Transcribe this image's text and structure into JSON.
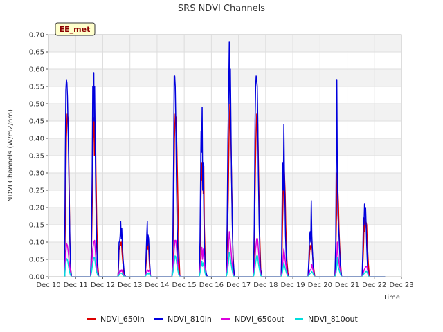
{
  "chart_data": {
    "type": "line",
    "title": "SRS NDVI Channels",
    "site_label": "EE_met",
    "xlabel": "Time",
    "ylabel": "NDVI Channels (W/m2/nm)",
    "xlim": [
      10.0,
      23.0
    ],
    "ylim": [
      0.0,
      0.7
    ],
    "x_ticks": [
      {
        "v": 10,
        "label": "Dec 10"
      },
      {
        "v": 11,
        "label": "Dec 11"
      },
      {
        "v": 12,
        "label": "Dec 12"
      },
      {
        "v": 13,
        "label": "Dec 13"
      },
      {
        "v": 14,
        "label": "Dec 14"
      },
      {
        "v": 15,
        "label": "Dec 15"
      },
      {
        "v": 16,
        "label": "Dec 16"
      },
      {
        "v": 17,
        "label": "Dec 17"
      },
      {
        "v": 18,
        "label": "Dec 18"
      },
      {
        "v": 19,
        "label": "Dec 19"
      },
      {
        "v": 20,
        "label": "Dec 20"
      },
      {
        "v": 21,
        "label": "Dec 21"
      },
      {
        "v": 22,
        "label": "Dec 22"
      },
      {
        "v": 23,
        "label": "Dec 23"
      }
    ],
    "y_ticks": [
      {
        "v": 0.0,
        "label": "0.00"
      },
      {
        "v": 0.05,
        "label": "0.05"
      },
      {
        "v": 0.1,
        "label": "0.10"
      },
      {
        "v": 0.15,
        "label": "0.15"
      },
      {
        "v": 0.2,
        "label": "0.20"
      },
      {
        "v": 0.25,
        "label": "0.25"
      },
      {
        "v": 0.3,
        "label": "0.30"
      },
      {
        "v": 0.35,
        "label": "0.35"
      },
      {
        "v": 0.4,
        "label": "0.40"
      },
      {
        "v": 0.45,
        "label": "0.45"
      },
      {
        "v": 0.5,
        "label": "0.50"
      },
      {
        "v": 0.55,
        "label": "0.55"
      },
      {
        "v": 0.6,
        "label": "0.60"
      },
      {
        "v": 0.65,
        "label": "0.65"
      },
      {
        "v": 0.7,
        "label": "0.70"
      }
    ],
    "grid": true,
    "legend_position": "bottom",
    "series": [
      {
        "name": "NDVI_650in",
        "color": "#dd0000",
        "x": [
          10.57,
          10.6,
          10.63,
          10.66,
          10.69,
          10.72,
          10.74,
          10.76,
          10.79,
          10.82,
          10.85,
          11.55,
          11.58,
          11.61,
          11.64,
          11.67,
          11.69,
          11.7,
          11.71,
          11.72,
          11.74,
          11.75,
          11.78,
          11.82,
          11.85,
          12.56,
          12.58,
          12.6,
          12.62,
          12.65,
          12.67,
          12.69,
          12.71,
          12.74,
          12.78,
          12.83,
          13.56,
          13.59,
          13.62,
          13.65,
          13.66,
          13.68,
          13.72,
          13.76,
          14.55,
          14.58,
          14.61,
          14.64,
          14.67,
          14.7,
          14.73,
          14.76,
          14.8,
          14.84,
          15.55,
          15.58,
          15.61,
          15.64,
          15.66,
          15.68,
          15.7,
          15.72,
          15.74,
          15.77,
          15.8,
          15.84,
          16.55,
          16.58,
          16.62,
          16.65,
          16.68,
          16.7,
          16.72,
          16.75,
          16.79,
          16.84,
          17.55,
          17.58,
          17.62,
          17.64,
          17.67,
          17.69,
          17.71,
          17.74,
          17.78,
          17.82,
          17.86,
          18.57,
          18.6,
          18.62,
          18.65,
          18.68,
          18.7,
          18.72,
          18.74,
          18.78,
          18.82,
          18.86,
          19.56,
          19.59,
          19.62,
          19.64,
          19.66,
          19.69,
          19.72,
          19.76,
          19.81,
          20.55,
          20.58,
          20.61,
          20.63,
          20.66,
          20.68,
          20.7,
          20.72,
          20.75,
          20.79,
          21.55,
          21.58,
          21.61,
          21.63,
          21.65,
          21.67,
          21.69,
          21.72,
          21.74,
          21.78,
          21.82
        ],
        "y": [
          0.0,
          0.05,
          0.2,
          0.4,
          0.47,
          0.46,
          0.38,
          0.28,
          0.1,
          0.02,
          0.0,
          0.0,
          0.05,
          0.2,
          0.4,
          0.46,
          0.35,
          0.5,
          0.42,
          0.45,
          0.36,
          0.3,
          0.15,
          0.03,
          0.0,
          0.0,
          0.03,
          0.08,
          0.08,
          0.1,
          0.09,
          0.1,
          0.07,
          0.04,
          0.01,
          0.0,
          0.0,
          0.03,
          0.07,
          0.09,
          0.08,
          0.1,
          0.03,
          0.0,
          0.0,
          0.05,
          0.2,
          0.4,
          0.47,
          0.46,
          0.37,
          0.25,
          0.08,
          0.0,
          0.0,
          0.05,
          0.2,
          0.33,
          0.28,
          0.33,
          0.24,
          0.32,
          0.15,
          0.06,
          0.01,
          0.0,
          0.0,
          0.08,
          0.22,
          0.4,
          0.5,
          0.52,
          0.4,
          0.26,
          0.08,
          0.0,
          0.0,
          0.08,
          0.3,
          0.39,
          0.47,
          0.47,
          0.44,
          0.3,
          0.12,
          0.02,
          0.0,
          0.0,
          0.05,
          0.15,
          0.25,
          0.32,
          0.28,
          0.24,
          0.15,
          0.05,
          0.01,
          0.0,
          0.0,
          0.03,
          0.07,
          0.09,
          0.08,
          0.1,
          0.07,
          0.03,
          0.0,
          0.0,
          0.06,
          0.18,
          0.3,
          0.25,
          0.21,
          0.14,
          0.1,
          0.05,
          0.0,
          0.0,
          0.04,
          0.1,
          0.17,
          0.13,
          0.15,
          0.16,
          0.15,
          0.1,
          0.04,
          0.0
        ]
      },
      {
        "name": "NDVI_810in",
        "color": "#0000dd",
        "x": [
          10.57,
          10.6,
          10.62,
          10.64,
          10.66,
          10.68,
          10.7,
          10.73,
          10.76,
          10.79,
          10.82,
          10.85,
          11.55,
          11.58,
          11.61,
          11.63,
          11.65,
          11.67,
          11.68,
          11.7,
          11.72,
          11.74,
          11.77,
          11.81,
          11.85,
          12.56,
          12.58,
          12.6,
          12.62,
          12.64,
          12.66,
          12.68,
          12.7,
          12.72,
          12.75,
          12.79,
          12.84,
          13.56,
          13.59,
          13.62,
          13.64,
          13.65,
          13.67,
          13.69,
          13.72,
          13.76,
          14.55,
          14.58,
          14.61,
          14.63,
          14.65,
          14.67,
          14.69,
          14.71,
          14.74,
          14.77,
          14.81,
          14.85,
          15.55,
          15.58,
          15.61,
          15.62,
          15.64,
          15.66,
          15.68,
          15.7,
          15.72,
          15.74,
          15.77,
          15.81,
          15.85,
          16.55,
          16.58,
          16.61,
          16.64,
          16.66,
          16.68,
          16.7,
          16.72,
          16.74,
          16.77,
          16.8,
          16.85,
          17.55,
          17.58,
          17.61,
          17.63,
          17.65,
          17.67,
          17.69,
          17.71,
          17.73,
          17.76,
          17.8,
          17.85,
          18.57,
          18.59,
          18.61,
          18.63,
          18.65,
          18.67,
          18.69,
          18.71,
          18.73,
          18.76,
          18.8,
          18.85,
          19.56,
          19.59,
          19.62,
          19.64,
          19.66,
          19.68,
          19.7,
          19.72,
          19.75,
          19.8,
          20.55,
          20.58,
          20.6,
          20.62,
          20.64,
          20.66,
          20.68,
          20.7,
          20.72,
          20.75,
          20.8,
          21.55,
          21.58,
          21.6,
          21.62,
          21.64,
          21.66,
          21.68,
          21.7,
          21.72,
          21.75,
          21.8
        ],
        "y": [
          0.0,
          0.1,
          0.35,
          0.54,
          0.57,
          0.56,
          0.52,
          0.4,
          0.25,
          0.1,
          0.02,
          0.0,
          0.0,
          0.08,
          0.3,
          0.55,
          0.5,
          0.59,
          0.45,
          0.55,
          0.4,
          0.25,
          0.1,
          0.02,
          0.0,
          0.0,
          0.04,
          0.1,
          0.1,
          0.12,
          0.16,
          0.11,
          0.14,
          0.09,
          0.05,
          0.01,
          0.0,
          0.0,
          0.05,
          0.12,
          0.16,
          0.09,
          0.12,
          0.11,
          0.05,
          0.0,
          0.0,
          0.1,
          0.35,
          0.58,
          0.58,
          0.55,
          0.45,
          0.3,
          0.15,
          0.05,
          0.01,
          0.0,
          0.0,
          0.1,
          0.35,
          0.42,
          0.36,
          0.49,
          0.25,
          0.33,
          0.2,
          0.1,
          0.03,
          0.01,
          0.0,
          0.0,
          0.15,
          0.4,
          0.55,
          0.68,
          0.5,
          0.6,
          0.45,
          0.3,
          0.15,
          0.05,
          0.0,
          0.0,
          0.15,
          0.45,
          0.55,
          0.58,
          0.57,
          0.55,
          0.45,
          0.3,
          0.15,
          0.03,
          0.0,
          0.0,
          0.08,
          0.25,
          0.33,
          0.25,
          0.44,
          0.3,
          0.22,
          0.12,
          0.05,
          0.01,
          0.0,
          0.0,
          0.05,
          0.12,
          0.13,
          0.1,
          0.22,
          0.12,
          0.08,
          0.03,
          0.0,
          0.0,
          0.1,
          0.35,
          0.57,
          0.3,
          0.18,
          0.15,
          0.12,
          0.08,
          0.03,
          0.0,
          0.0,
          0.08,
          0.17,
          0.15,
          0.21,
          0.19,
          0.2,
          0.15,
          0.09,
          0.03,
          0.0
        ]
      },
      {
        "name": "NDVI_650out",
        "color": "#dd00dd",
        "x": [
          10.57,
          10.61,
          10.64,
          10.67,
          10.7,
          10.73,
          10.77,
          10.81,
          10.85,
          11.55,
          11.59,
          11.63,
          11.67,
          11.7,
          11.73,
          11.77,
          11.81,
          11.85,
          12.56,
          12.6,
          12.64,
          12.67,
          12.7,
          12.74,
          12.8,
          13.56,
          13.6,
          13.64,
          13.68,
          13.72,
          13.76,
          14.55,
          14.59,
          14.63,
          14.66,
          14.69,
          14.72,
          14.76,
          14.8,
          14.84,
          15.55,
          15.58,
          15.62,
          15.65,
          15.67,
          15.7,
          15.73,
          15.77,
          15.81,
          16.55,
          16.59,
          16.63,
          16.66,
          16.69,
          16.72,
          16.76,
          16.8,
          16.84,
          17.55,
          17.59,
          17.63,
          17.67,
          17.7,
          17.73,
          17.77,
          17.81,
          17.85,
          18.57,
          18.61,
          18.64,
          18.67,
          18.7,
          18.73,
          18.77,
          18.82,
          19.56,
          19.6,
          19.64,
          19.67,
          19.7,
          19.74,
          19.8,
          20.55,
          20.59,
          20.62,
          20.64,
          20.67,
          20.7,
          20.74,
          20.79,
          21.55,
          21.59,
          21.63,
          21.66,
          21.69,
          21.72,
          21.75,
          21.8
        ],
        "y": [
          0.0,
          0.03,
          0.07,
          0.095,
          0.09,
          0.07,
          0.04,
          0.01,
          0.0,
          0.0,
          0.03,
          0.08,
          0.1,
          0.105,
          0.07,
          0.03,
          0.01,
          0.0,
          0.0,
          0.01,
          0.02,
          0.015,
          0.02,
          0.01,
          0.0,
          0.0,
          0.01,
          0.02,
          0.015,
          0.02,
          0.0,
          0.0,
          0.03,
          0.08,
          0.105,
          0.105,
          0.08,
          0.04,
          0.01,
          0.0,
          0.0,
          0.02,
          0.06,
          0.085,
          0.05,
          0.08,
          0.05,
          0.02,
          0.0,
          0.0,
          0.03,
          0.08,
          0.13,
          0.11,
          0.08,
          0.04,
          0.01,
          0.0,
          0.0,
          0.03,
          0.08,
          0.11,
          0.11,
          0.08,
          0.04,
          0.01,
          0.0,
          0.0,
          0.02,
          0.05,
          0.08,
          0.06,
          0.04,
          0.02,
          0.0,
          0.0,
          0.01,
          0.02,
          0.02,
          0.035,
          0.02,
          0.0,
          0.0,
          0.02,
          0.06,
          0.1,
          0.06,
          0.04,
          0.02,
          0.0,
          0.0,
          0.01,
          0.02,
          0.025,
          0.03,
          0.03,
          0.02,
          0.0
        ]
      },
      {
        "name": "NDVI_810out",
        "color": "#00dddd",
        "x": [
          10.57,
          10.61,
          10.64,
          10.67,
          10.7,
          10.73,
          10.77,
          10.81,
          10.85,
          11.55,
          11.59,
          11.63,
          11.67,
          11.7,
          11.73,
          11.77,
          11.81,
          11.85,
          12.56,
          12.6,
          12.64,
          12.67,
          12.7,
          12.74,
          12.8,
          13.56,
          13.6,
          13.64,
          13.68,
          13.72,
          13.76,
          14.55,
          14.59,
          14.63,
          14.66,
          14.69,
          14.72,
          14.76,
          14.8,
          14.84,
          15.55,
          15.58,
          15.62,
          15.65,
          15.67,
          15.7,
          15.73,
          15.77,
          15.81,
          16.55,
          16.59,
          16.63,
          16.66,
          16.69,
          16.72,
          16.76,
          16.8,
          16.84,
          17.55,
          17.59,
          17.63,
          17.67,
          17.7,
          17.73,
          17.77,
          17.81,
          17.85,
          18.57,
          18.61,
          18.64,
          18.67,
          18.7,
          18.73,
          18.77,
          18.82,
          19.56,
          19.6,
          19.64,
          19.67,
          19.7,
          19.74,
          19.8,
          20.55,
          20.59,
          20.62,
          20.64,
          20.67,
          20.7,
          20.74,
          20.79,
          21.55,
          21.59,
          21.63,
          21.66,
          21.69,
          21.72,
          21.75,
          21.8
        ],
        "y": [
          0.0,
          0.015,
          0.04,
          0.052,
          0.05,
          0.035,
          0.015,
          0.005,
          0.0,
          0.0,
          0.015,
          0.04,
          0.055,
          0.055,
          0.035,
          0.015,
          0.005,
          0.0,
          0.0,
          0.005,
          0.01,
          0.01,
          0.01,
          0.005,
          0.0,
          0.0,
          0.005,
          0.01,
          0.008,
          0.01,
          0.0,
          0.0,
          0.015,
          0.04,
          0.06,
          0.058,
          0.04,
          0.02,
          0.005,
          0.0,
          0.0,
          0.01,
          0.03,
          0.045,
          0.03,
          0.04,
          0.025,
          0.01,
          0.0,
          0.0,
          0.015,
          0.04,
          0.07,
          0.06,
          0.04,
          0.02,
          0.005,
          0.0,
          0.0,
          0.015,
          0.04,
          0.06,
          0.06,
          0.04,
          0.02,
          0.005,
          0.0,
          0.0,
          0.01,
          0.025,
          0.04,
          0.03,
          0.02,
          0.01,
          0.0,
          0.0,
          0.005,
          0.01,
          0.01,
          0.015,
          0.01,
          0.0,
          0.0,
          0.01,
          0.03,
          0.055,
          0.03,
          0.02,
          0.01,
          0.0,
          0.0,
          0.005,
          0.01,
          0.012,
          0.015,
          0.015,
          0.01,
          0.0
        ]
      }
    ]
  }
}
